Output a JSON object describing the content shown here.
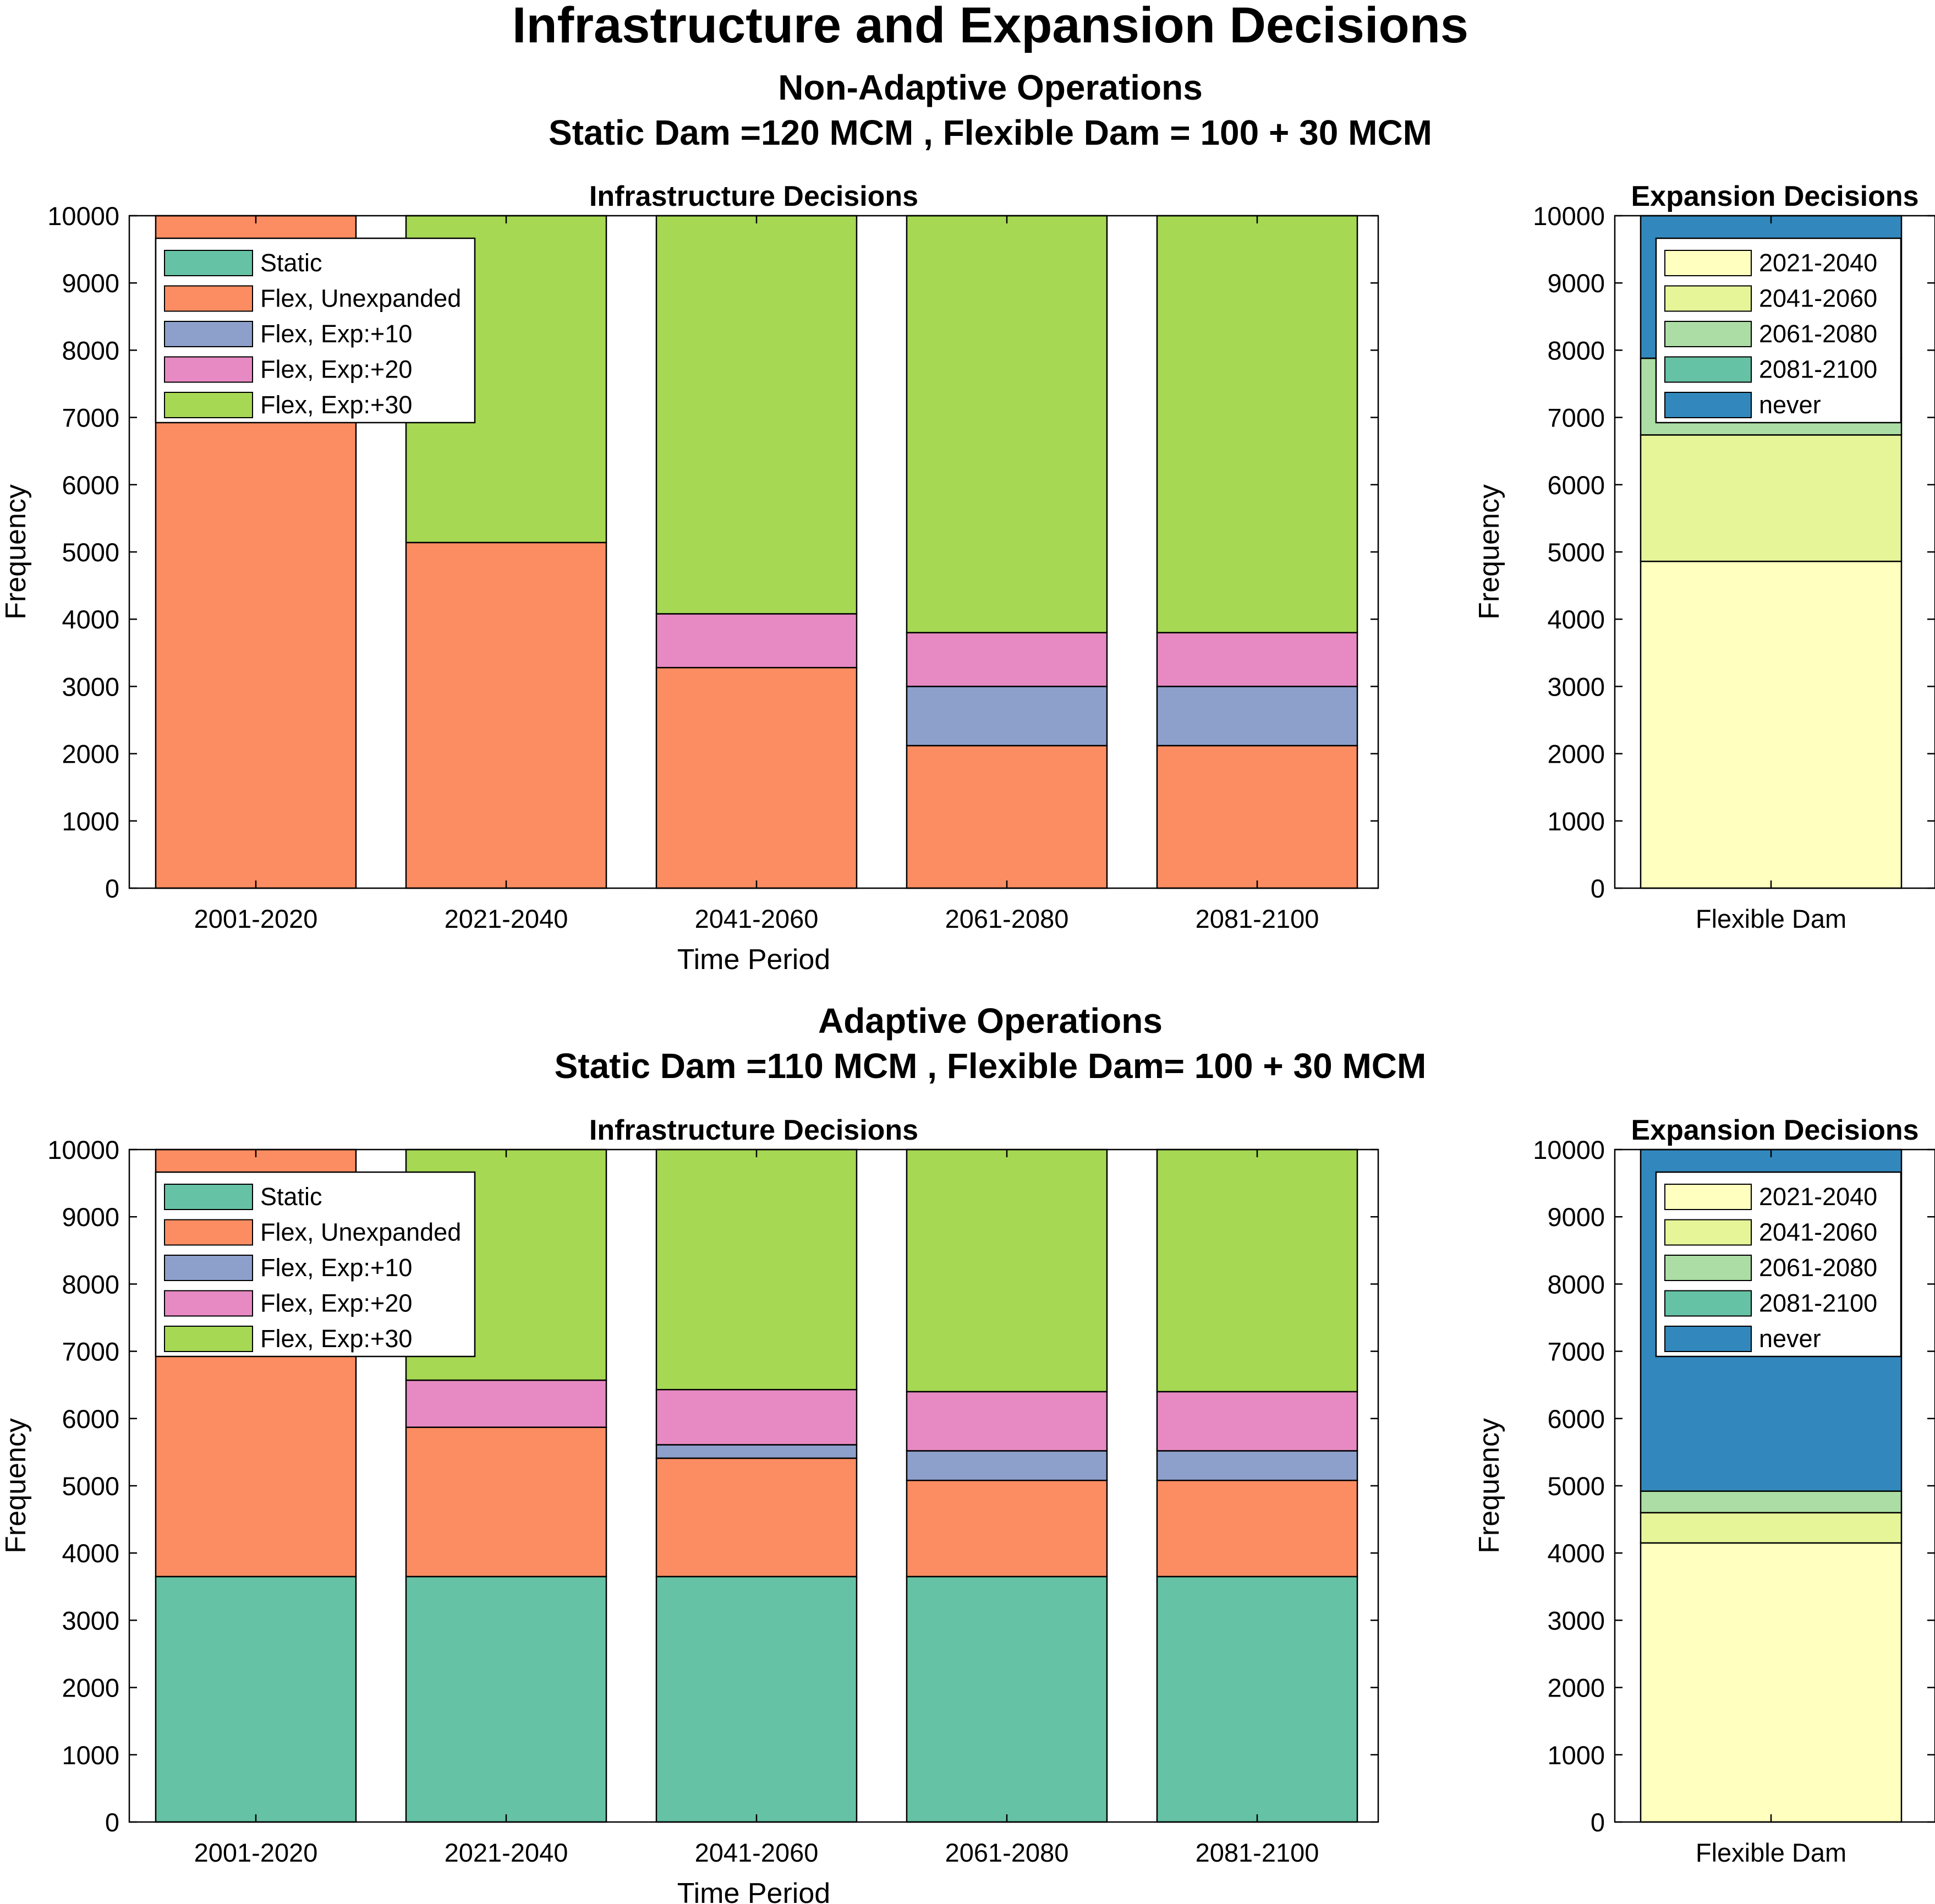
{
  "title": "Infrastructure and Expansion Decisions",
  "sections": [
    {
      "title": "Non-Adaptive Operations",
      "subtitle": "Static Dam =120 MCM , Flexible Dam = 100 + 30 MCM"
    },
    {
      "title": "Adaptive Operations",
      "subtitle": "Static Dam =110 MCM , Flexible Dam= 100 + 30 MCM"
    }
  ],
  "colors": {
    "Static": "#66c2a5",
    "Flex, Unexpanded": "#fc8d62",
    "Flex, Exp:+10": "#8da0cb",
    "Flex, Exp:+20": "#e78ac3",
    "Flex, Exp:+30": "#a6d854",
    "2021-2040": "#ffffbf",
    "2041-2060": "#e6f598",
    "2061-2080": "#abdda4",
    "2081-2100": "#66c2a5",
    "never": "#3288bd"
  },
  "chart_data": [
    {
      "id": "infra-nonadaptive",
      "type": "bar",
      "stacked": true,
      "title": "Infrastructure Decisions",
      "xlabel": "Time Period",
      "ylabel": "Frequency",
      "ylim": [
        0,
        10000
      ],
      "yticks": [
        0,
        1000,
        2000,
        3000,
        4000,
        5000,
        6000,
        7000,
        8000,
        9000,
        10000
      ],
      "categories": [
        "2001-2020",
        "2021-2040",
        "2041-2060",
        "2061-2080",
        "2081-2100"
      ],
      "legend_position": "top-left",
      "series": [
        {
          "name": "Static",
          "values": [
            0,
            0,
            0,
            0,
            0
          ]
        },
        {
          "name": "Flex, Unexpanded",
          "values": [
            10000,
            5140,
            3280,
            2120,
            2120
          ]
        },
        {
          "name": "Flex, Exp:+10",
          "values": [
            0,
            0,
            0,
            880,
            880
          ]
        },
        {
          "name": "Flex, Exp:+20",
          "values": [
            0,
            0,
            800,
            800,
            800
          ]
        },
        {
          "name": "Flex, Exp:+30",
          "values": [
            0,
            4860,
            5920,
            6200,
            6200
          ]
        }
      ]
    },
    {
      "id": "expansion-nonadaptive",
      "type": "bar",
      "stacked": true,
      "title": "Expansion Decisions",
      "xlabel": "",
      "ylabel": "Frequency",
      "ylim": [
        0,
        10000
      ],
      "yticks": [
        0,
        1000,
        2000,
        3000,
        4000,
        5000,
        6000,
        7000,
        8000,
        9000,
        10000
      ],
      "categories": [
        "Flexible Dam"
      ],
      "legend_position": "top",
      "series": [
        {
          "name": "2021-2040",
          "values": [
            4860
          ]
        },
        {
          "name": "2041-2060",
          "values": [
            1880
          ]
        },
        {
          "name": "2061-2080",
          "values": [
            1140
          ]
        },
        {
          "name": "2081-2100",
          "values": [
            0
          ]
        },
        {
          "name": "never",
          "values": [
            2120
          ]
        }
      ]
    },
    {
      "id": "infra-adaptive",
      "type": "bar",
      "stacked": true,
      "title": "Infrastructure Decisions",
      "xlabel": "Time Period",
      "ylabel": "Frequency",
      "ylim": [
        0,
        10000
      ],
      "yticks": [
        0,
        1000,
        2000,
        3000,
        4000,
        5000,
        6000,
        7000,
        8000,
        9000,
        10000
      ],
      "categories": [
        "2001-2020",
        "2021-2040",
        "2041-2060",
        "2061-2080",
        "2081-2100"
      ],
      "legend_position": "top-left",
      "series": [
        {
          "name": "Static",
          "values": [
            3650,
            3650,
            3650,
            3650,
            3650
          ]
        },
        {
          "name": "Flex, Unexpanded",
          "values": [
            6350,
            2220,
            1760,
            1430,
            1430
          ]
        },
        {
          "name": "Flex, Exp:+10",
          "values": [
            0,
            0,
            200,
            440,
            440
          ]
        },
        {
          "name": "Flex, Exp:+20",
          "values": [
            0,
            700,
            820,
            880,
            880
          ]
        },
        {
          "name": "Flex, Exp:+30",
          "values": [
            0,
            3430,
            3570,
            3600,
            3600
          ]
        }
      ]
    },
    {
      "id": "expansion-adaptive",
      "type": "bar",
      "stacked": true,
      "title": "Expansion Decisions",
      "xlabel": "",
      "ylabel": "Frequency",
      "ylim": [
        0,
        10000
      ],
      "yticks": [
        0,
        1000,
        2000,
        3000,
        4000,
        5000,
        6000,
        7000,
        8000,
        9000,
        10000
      ],
      "categories": [
        "Flexible Dam"
      ],
      "legend_position": "top",
      "series": [
        {
          "name": "2021-2040",
          "values": [
            4150
          ]
        },
        {
          "name": "2041-2060",
          "values": [
            450
          ]
        },
        {
          "name": "2061-2080",
          "values": [
            320
          ]
        },
        {
          "name": "2081-2100",
          "values": [
            0
          ]
        },
        {
          "name": "never",
          "values": [
            5080
          ]
        }
      ]
    }
  ]
}
